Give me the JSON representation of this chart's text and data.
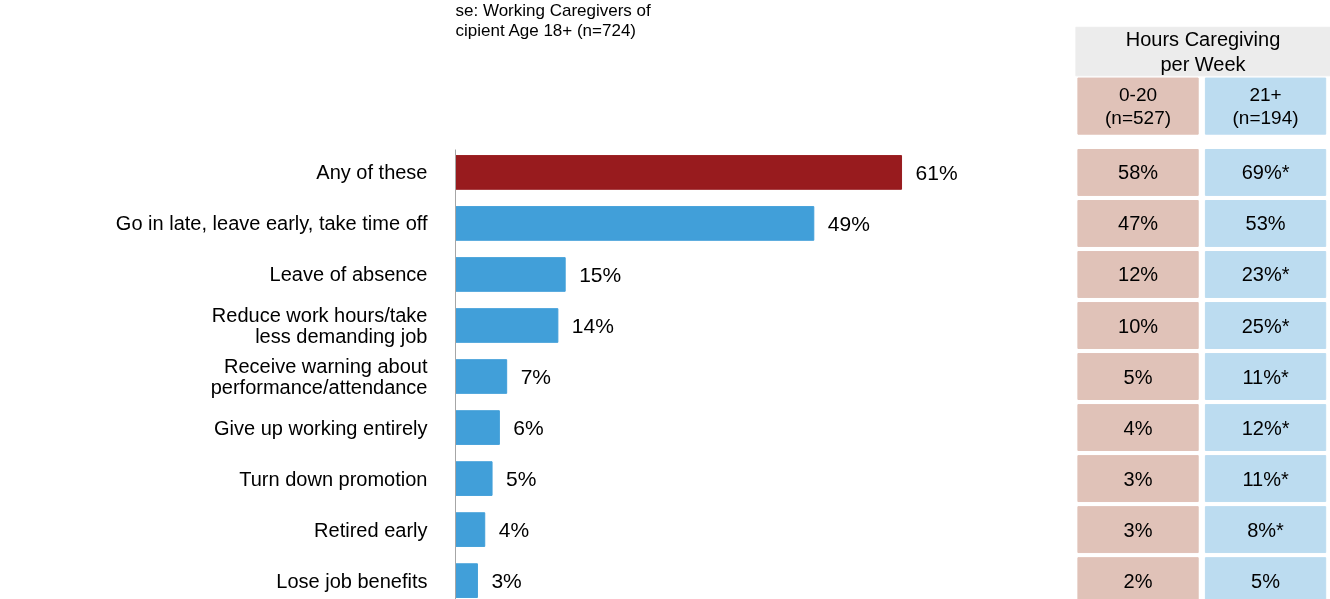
{
  "chart_data": [
    {
      "type": "bar",
      "orientation": "horizontal",
      "title": "se: Working Caregivers of\ncipient Age 18+ (n=724)",
      "categories": [
        "Any of these",
        "Go in late, leave early, take time off",
        "Leave of absence",
        "Reduce work hours/take\nless demanding job",
        "Receive warning about\nperformance/attendance",
        "Give up working entirely",
        "Turn down promotion",
        "Retired early",
        "Lose job benefits"
      ],
      "values": [
        61,
        49,
        15,
        14,
        7,
        6,
        5,
        4,
        3
      ],
      "colors": [
        "#981b1e",
        "#419fd9",
        "#419fd9",
        "#419fd9",
        "#419fd9",
        "#419fd9",
        "#419fd9",
        "#419fd9",
        "#419fd9"
      ],
      "value_labels": [
        "61%",
        "49%",
        "15%",
        "14%",
        "7%",
        "6%",
        "5%",
        "4%",
        "3%"
      ],
      "grid": false
    },
    {
      "type": "other",
      "title": "Hours Caregiving\nper Week",
      "categories": [
        "0-20\n(n=527)",
        "21+\n(n=194)"
      ],
      "colors": [
        "#e0c2b8",
        "#bcdcf0"
      ],
      "cell_labels": [
        [
          "58%",
          "69%*"
        ],
        [
          "47%",
          "53%"
        ],
        [
          "12%",
          "23%*"
        ],
        [
          "10%",
          "25%*"
        ],
        [
          "5%",
          "11%*"
        ],
        [
          "4%",
          "12%*"
        ],
        [
          "3%",
          "11%*"
        ],
        [
          "3%",
          "8%*"
        ],
        [
          "2%",
          "5%"
        ]
      ]
    }
  ]
}
